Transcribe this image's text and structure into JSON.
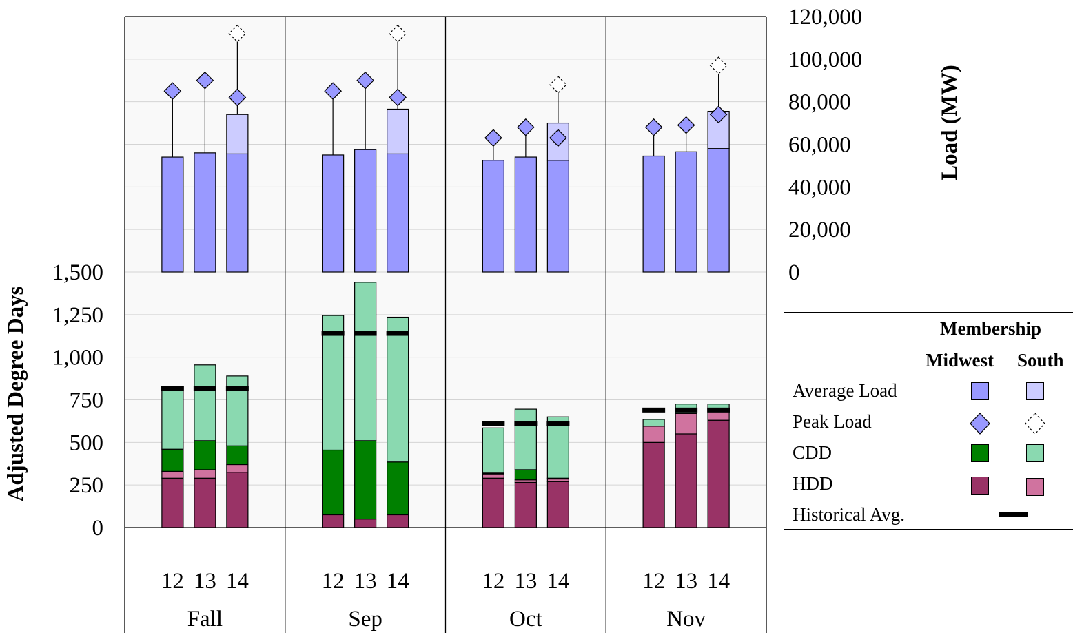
{
  "chart_data": {
    "type": "bar",
    "groups": [
      "Fall",
      "Sep",
      "Oct",
      "Nov"
    ],
    "years": [
      "12",
      "13",
      "14"
    ],
    "y_left": {
      "label": "Adjusted Degree Days",
      "ticks": [
        "0",
        "250",
        "500",
        "750",
        "1,000",
        "1,250",
        "1,500"
      ],
      "range": [
        0,
        1500
      ]
    },
    "y_right": {
      "label": "Load (MW)",
      "ticks": [
        "0",
        "20,000",
        "40,000",
        "60,000",
        "80,000",
        "100,000",
        "120,000"
      ],
      "range": [
        0,
        120000
      ]
    },
    "average_load_midwest": [
      [
        54000,
        56000,
        55500
      ],
      [
        55000,
        57500,
        55500
      ],
      [
        52500,
        54000,
        52500
      ],
      [
        54500,
        56500,
        58000
      ]
    ],
    "average_load_south_top": [
      null,
      null,
      74000,
      null,
      null,
      76500,
      null,
      null,
      70000,
      null,
      null,
      75500
    ],
    "peak_load_midwest": [
      [
        85000,
        90000,
        82000
      ],
      [
        85000,
        90000,
        82000
      ],
      [
        63000,
        68000,
        63000
      ],
      [
        68000,
        69000,
        74000
      ]
    ],
    "peak_load_south": [
      null,
      null,
      112000,
      null,
      null,
      112000,
      null,
      null,
      88000,
      null,
      null,
      97000
    ],
    "hdd_midwest": [
      [
        290,
        290,
        325
      ],
      [
        75,
        50,
        75
      ],
      [
        290,
        265,
        270
      ],
      [
        500,
        550,
        630
      ]
    ],
    "hdd_south": [
      [
        40,
        50,
        45
      ],
      [
        0,
        0,
        0
      ],
      [
        25,
        15,
        15
      ],
      [
        95,
        120,
        60
      ]
    ],
    "cdd_midwest": [
      [
        130,
        170,
        110
      ],
      [
        380,
        460,
        310
      ],
      [
        5,
        60,
        5
      ],
      [
        0,
        0,
        0
      ]
    ],
    "cdd_south": [
      [
        355,
        445,
        410
      ],
      [
        790,
        930,
        850
      ],
      [
        265,
        355,
        360
      ],
      [
        40,
        55,
        35
      ]
    ],
    "historical_avg": [
      [
        815,
        815,
        815
      ],
      [
        1140,
        1140,
        1140
      ],
      [
        610,
        610,
        610
      ],
      [
        690,
        690,
        690
      ]
    ],
    "colors": {
      "average_load_midwest": "#9999ff",
      "average_load_south": "#ccccff",
      "peak_load_midwest": "#9999ff",
      "cdd_midwest": "#008000",
      "cdd_south": "#8ad9b0",
      "hdd_midwest": "#993366",
      "hdd_south": "#d0739f",
      "historical": "#000000"
    },
    "legend": {
      "title": "Membership",
      "columns": [
        "Midwest",
        "South"
      ],
      "rows": [
        "Average Load",
        "Peak Load",
        "CDD",
        "HDD",
        "Historical Avg."
      ]
    }
  }
}
